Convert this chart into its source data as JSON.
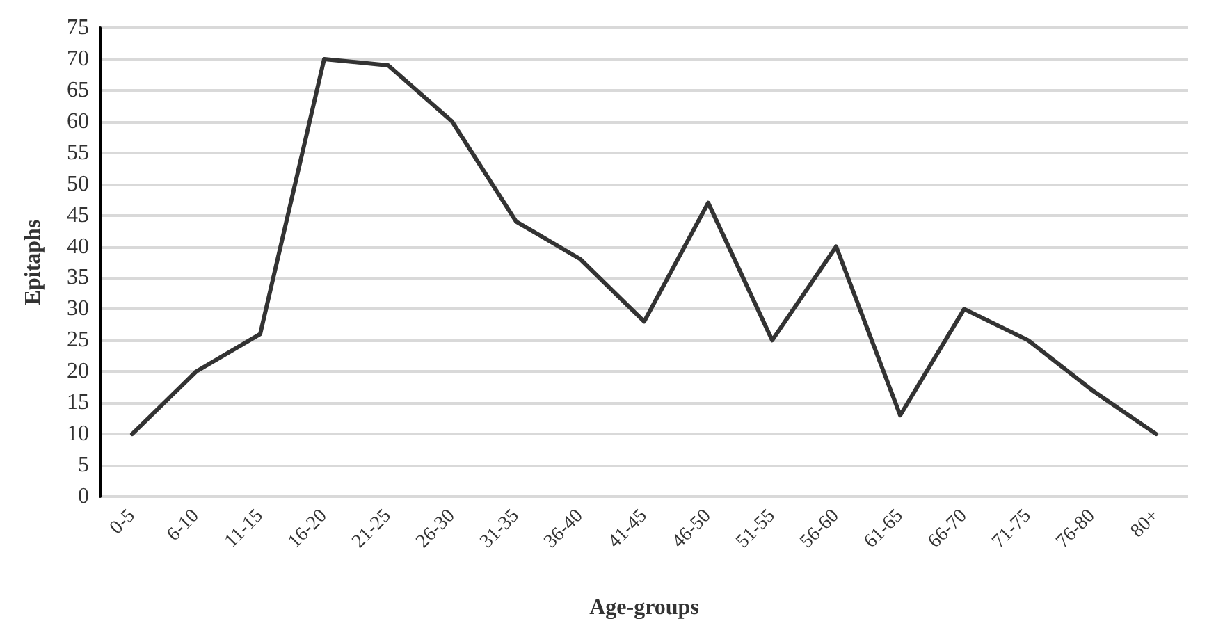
{
  "chart_data": {
    "type": "line",
    "xlabel": "Age-groups",
    "ylabel": "Epitaphs",
    "categories": [
      "0-5",
      "6-10",
      "11-15",
      "16-20",
      "21-25",
      "26-30",
      "31-35",
      "36-40",
      "41-45",
      "46-50",
      "51-55",
      "56-60",
      "61-65",
      "66-70",
      "71-75",
      "76-80",
      "80+"
    ],
    "series": [
      {
        "color": "#333333",
        "values": [
          10,
          20,
          26,
          70,
          69,
          60,
          44,
          38,
          28,
          47,
          25,
          40,
          13,
          30,
          25,
          17,
          10
        ]
      }
    ],
    "ylim": [
      0,
      75
    ],
    "yticks": [
      0,
      5,
      10,
      15,
      20,
      25,
      30,
      35,
      40,
      45,
      50,
      55,
      60,
      65,
      70,
      75
    ],
    "grid": "y",
    "marker": "none",
    "line_style": "solid"
  }
}
